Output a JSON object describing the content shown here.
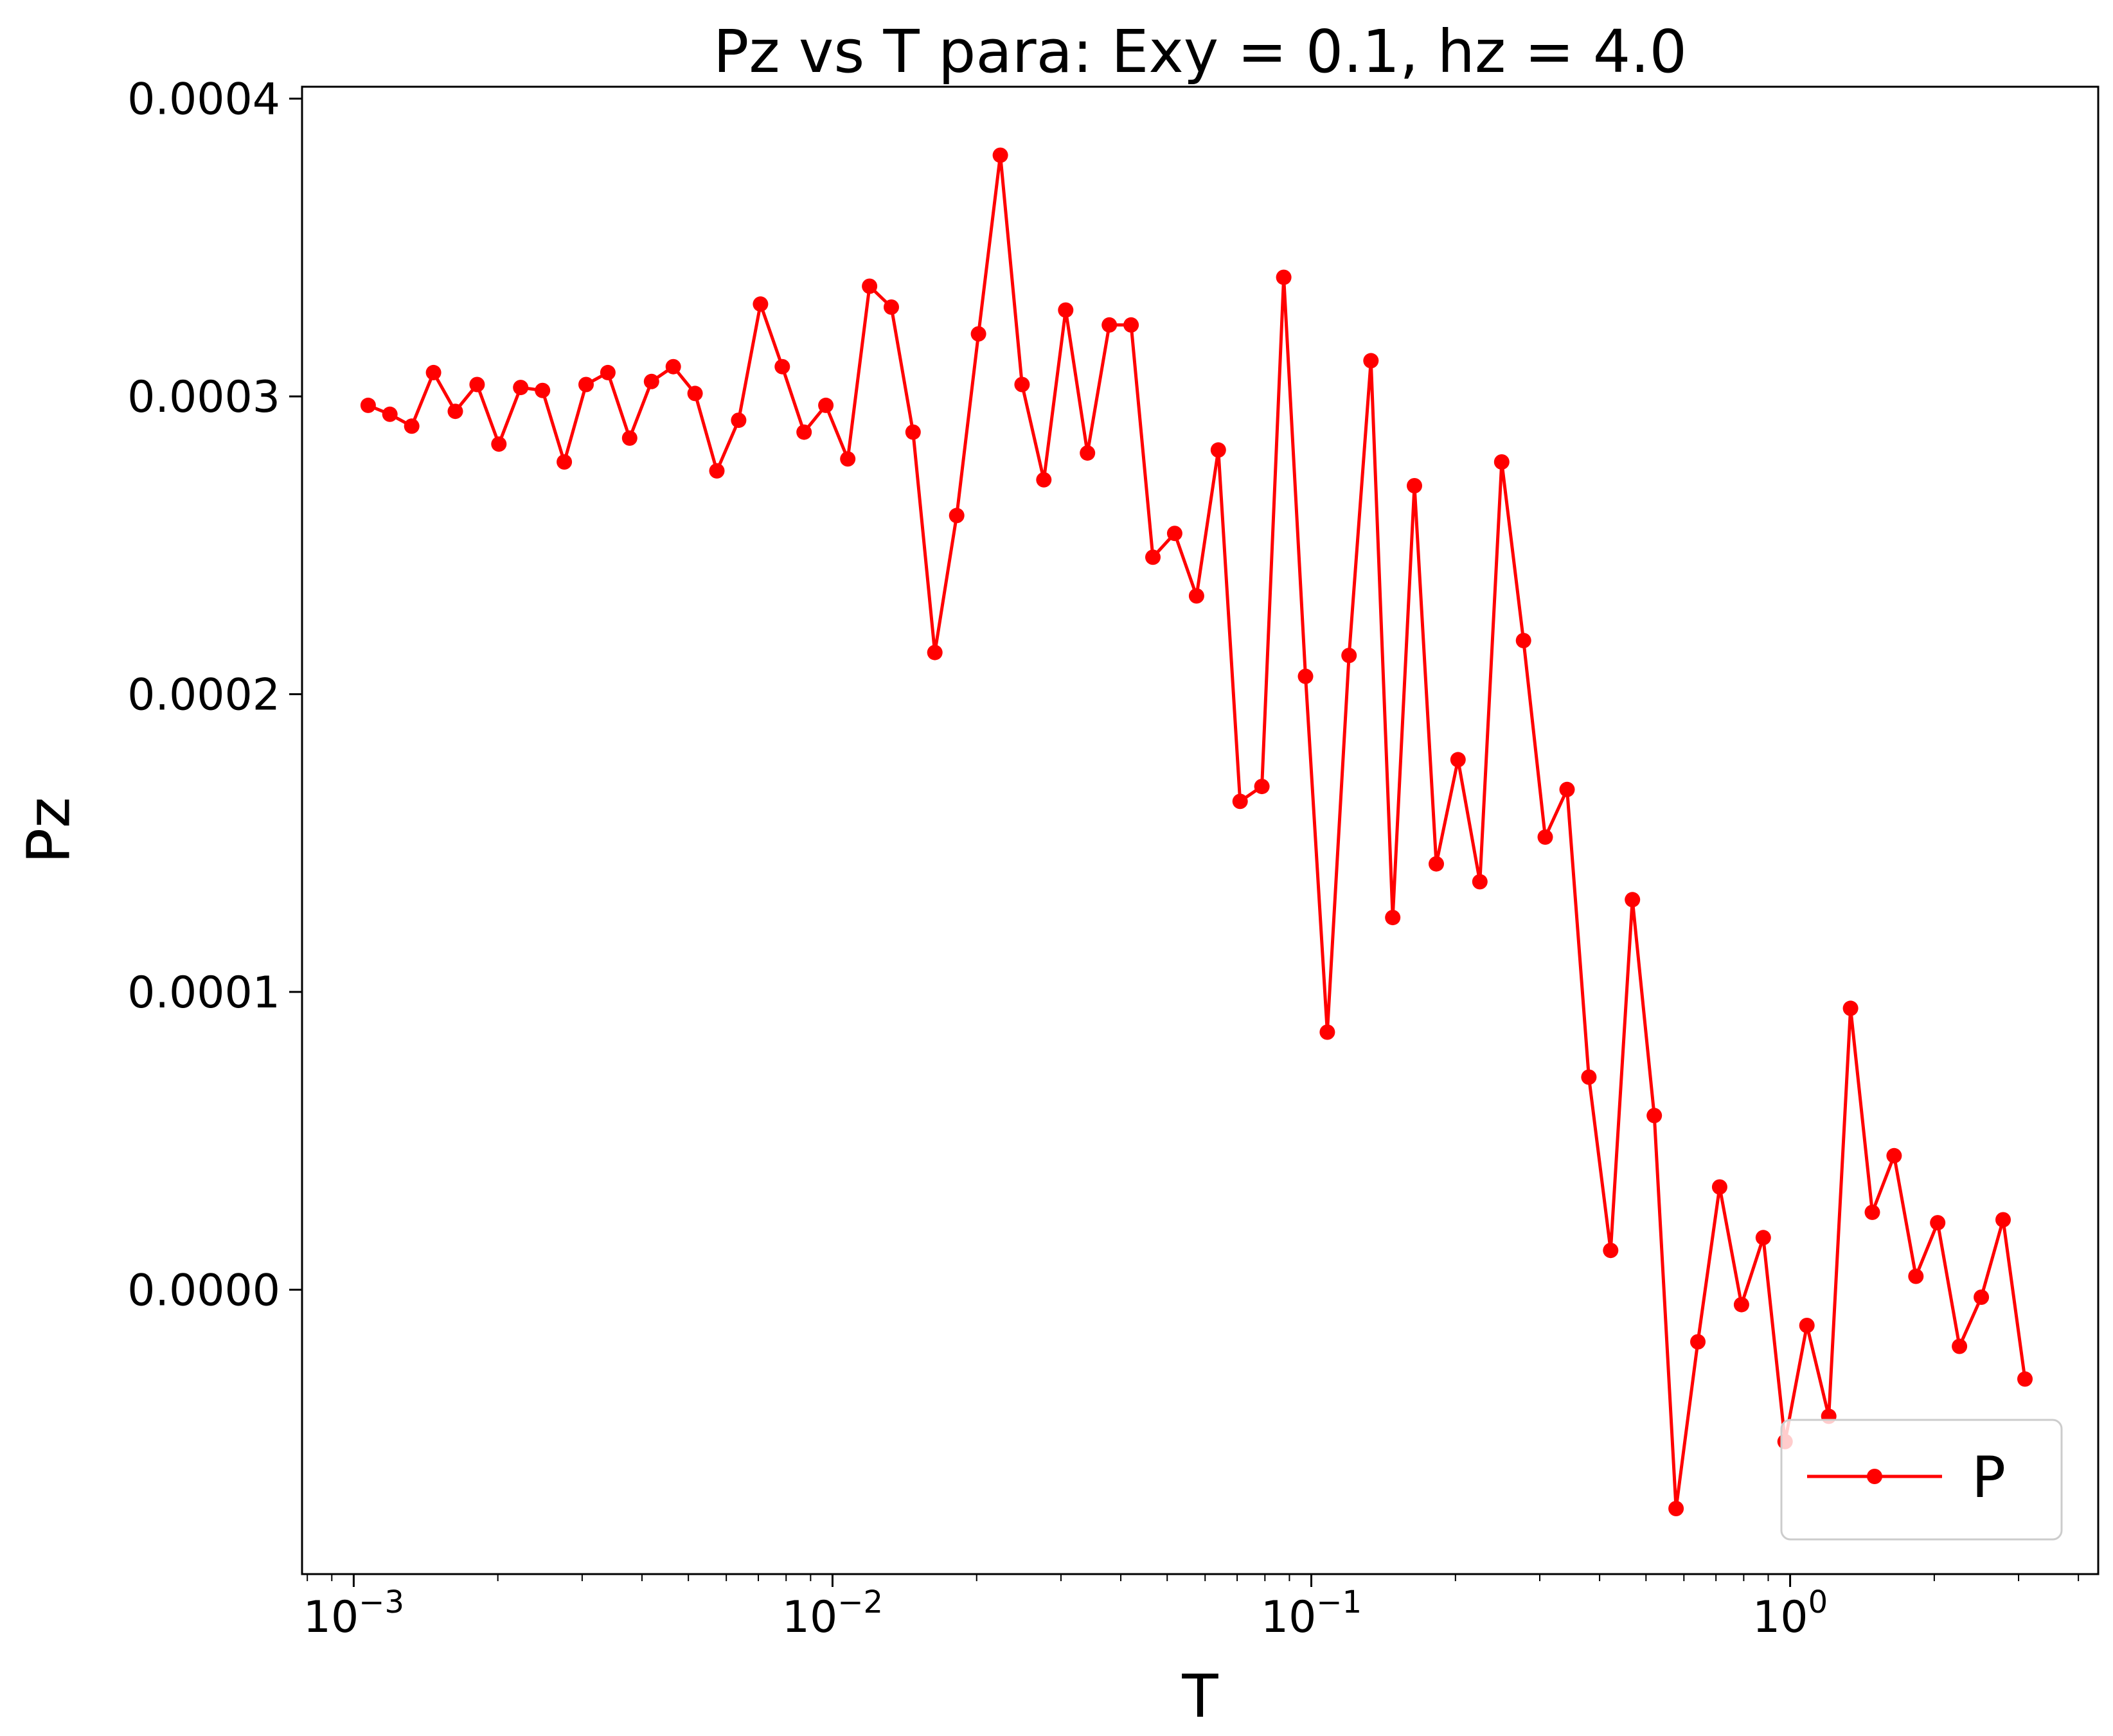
{
  "chart_data": {
    "type": "line",
    "title": "Pz vs T para: Exy = 0.1, hz = 4.0",
    "xlabel": "T",
    "ylabel": "Pz",
    "xscale": "log",
    "xlim": [
      0.00078,
      4.4
    ],
    "ylim": [
      -9.55e-05,
      0.000404
    ],
    "grid": false,
    "legend_position": "lower-right",
    "line_color": "#ff0000",
    "marker": "circle",
    "xticks": [
      {
        "value": 0.001,
        "base": "10",
        "exp": "−3"
      },
      {
        "value": 0.01,
        "base": "10",
        "exp": "−2"
      },
      {
        "value": 0.1,
        "base": "10",
        "exp": "−1"
      },
      {
        "value": 1,
        "base": "10",
        "exp": "0"
      }
    ],
    "yticks": [
      {
        "value": 0.0,
        "label": "0.0000"
      },
      {
        "value": 0.0001,
        "label": "0.0001"
      },
      {
        "value": 0.0002,
        "label": "0.0002"
      },
      {
        "value": 0.0003,
        "label": "0.0003"
      },
      {
        "value": 0.0004,
        "label": "0.0004"
      }
    ],
    "series": [
      {
        "name": "P",
        "x": [
          0.001072,
          0.00119,
          0.001322,
          0.001468,
          0.00163,
          0.00181,
          0.00201,
          0.002232,
          0.002479,
          0.002753,
          0.003057,
          0.003395,
          0.00377,
          0.004187,
          0.00465,
          0.005164,
          0.005734,
          0.006368,
          0.007072,
          0.007854,
          0.008722,
          0.009686,
          0.01076,
          0.01195,
          0.01327,
          0.01473,
          0.01636,
          0.01817,
          0.02018,
          0.02241,
          0.02488,
          0.02763,
          0.03069,
          0.03408,
          0.03785,
          0.04203,
          0.04668,
          0.05184,
          0.05757,
          0.06393,
          0.071,
          0.07885,
          0.08757,
          0.09724,
          0.108,
          0.1199,
          0.1332,
          0.1479,
          0.1642,
          0.1824,
          0.2025,
          0.2249,
          0.2498,
          0.2774,
          0.308,
          0.3421,
          0.3799,
          0.4219,
          0.4685,
          0.5203,
          0.5778,
          0.6417,
          0.7126,
          0.7914,
          0.8789,
          0.976,
          1.084,
          1.204,
          1.337,
          1.485,
          1.649,
          1.831,
          2.033,
          2.258,
          2.508,
          2.785,
          3.093
        ],
        "y": [
          0.000297,
          0.000294,
          0.00029,
          0.000308,
          0.000295,
          0.000304,
          0.000284,
          0.000303,
          0.000302,
          0.000278,
          0.000304,
          0.000308,
          0.000286,
          0.000305,
          0.00031,
          0.000301,
          0.000275,
          0.000292,
          0.000331,
          0.00031,
          0.000288,
          0.000297,
          0.000279,
          0.000337,
          0.00033,
          0.000288,
          0.000214,
          0.00026,
          0.000321,
          0.000381,
          0.000304,
          0.000272,
          0.000329,
          0.000281,
          0.000324,
          0.000324,
          0.000246,
          0.000254,
          0.000233,
          0.000282,
          0.000164,
          0.000169,
          0.00034,
          0.000206,
          8.65e-05,
          0.000213,
          0.000312,
          0.000125,
          0.00027,
          0.000143,
          0.000178,
          0.000137,
          0.000278,
          0.000218,
          0.000152,
          0.000168,
          7.14e-05,
          1.32e-05,
          0.000131,
          5.85e-05,
          -7.35e-05,
          -1.75e-05,
          3.45e-05,
          -5e-06,
          1.75e-05,
          -5.1e-05,
          -1.2e-05,
          -4.25e-05,
          9.45e-05,
          2.6e-05,
          4.5e-05,
          4.5e-06,
          2.25e-05,
          -1.9e-05,
          -2.5e-06,
          2.35e-05,
          -3e-05
        ]
      }
    ]
  }
}
